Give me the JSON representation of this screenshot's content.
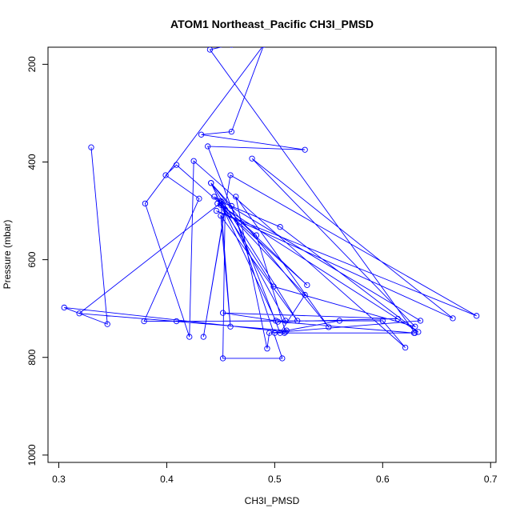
{
  "chart_data": {
    "type": "line",
    "title": "ATOM1 Northeast_Pacific CH3I_PMSD",
    "xlabel": "CH3I_PMSD",
    "ylabel": "Pressure (mbar)",
    "xlim": [
      0.29,
      0.705
    ],
    "ylim": [
      1015,
      165
    ],
    "y_reversed": true,
    "xticks": [
      0.3,
      0.4,
      0.5,
      0.6,
      0.7
    ],
    "xtick_labels": [
      "0.3",
      "0.4",
      "0.5",
      "0.6",
      "0.7"
    ],
    "yticks": [
      200,
      400,
      600,
      800,
      1000
    ],
    "ytick_labels": [
      "200",
      "400",
      "600",
      "800",
      "1000"
    ],
    "grid": false,
    "legend": "none",
    "marker": "open-circle",
    "color": "#0000ff",
    "series": [
      {
        "values": [
          [
            0.33,
            370
          ],
          [
            0.345,
            732
          ],
          [
            0.305,
            698
          ],
          [
            0.51,
            748
          ],
          [
            0.483,
            550
          ],
          [
            0.409,
            406
          ],
          [
            0.399,
            427
          ],
          [
            0.43,
            475
          ],
          [
            0.379,
            726
          ],
          [
            0.6,
            725
          ],
          [
            0.621,
            780
          ],
          [
            0.425,
            398
          ],
          [
            0.421,
            758
          ],
          [
            0.38,
            485
          ],
          [
            0.49,
            160
          ],
          [
            0.46,
            338
          ],
          [
            0.432,
            344
          ],
          [
            0.528,
            375
          ],
          [
            0.438,
            368
          ],
          [
            0.505,
            750
          ],
          [
            0.528,
            672
          ],
          [
            0.45,
            488
          ],
          [
            0.499,
            655
          ],
          [
            0.63,
            737
          ],
          [
            0.479,
            393
          ],
          [
            0.665,
            720
          ],
          [
            0.446,
            500
          ],
          [
            0.687,
            715
          ],
          [
            0.459,
            427
          ],
          [
            0.434,
            758
          ],
          [
            0.454,
            497
          ],
          [
            0.452,
            802
          ],
          [
            0.507,
            802
          ],
          [
            0.46,
            490
          ],
          [
            0.441,
            443
          ],
          [
            0.55,
            738
          ],
          [
            0.464,
            471
          ],
          [
            0.493,
            782
          ],
          [
            0.495,
            750
          ],
          [
            0.635,
            725
          ],
          [
            0.444,
            471
          ],
          [
            0.53,
            652
          ],
          [
            0.447,
            485
          ],
          [
            0.633,
            748
          ],
          [
            0.505,
            533
          ],
          [
            0.451,
            482
          ],
          [
            0.319,
            710
          ],
          [
            0.511,
            745
          ],
          [
            0.56,
            725
          ],
          [
            0.409,
            726
          ],
          [
            0.51,
            725
          ],
          [
            0.45,
            480
          ],
          [
            0.459,
            737
          ],
          [
            0.45,
            510
          ],
          [
            0.521,
            725
          ],
          [
            0.441,
            443
          ],
          [
            0.501,
            725
          ],
          [
            0.452,
            709
          ],
          [
            0.614,
            721
          ],
          [
            0.503,
            727
          ],
          [
            0.629,
            750
          ],
          [
            0.509,
            750
          ],
          [
            0.5,
            750
          ],
          [
            0.63,
            750
          ],
          [
            0.44,
            170
          ],
          [
            0.46,
            160
          ]
        ]
      }
    ]
  }
}
